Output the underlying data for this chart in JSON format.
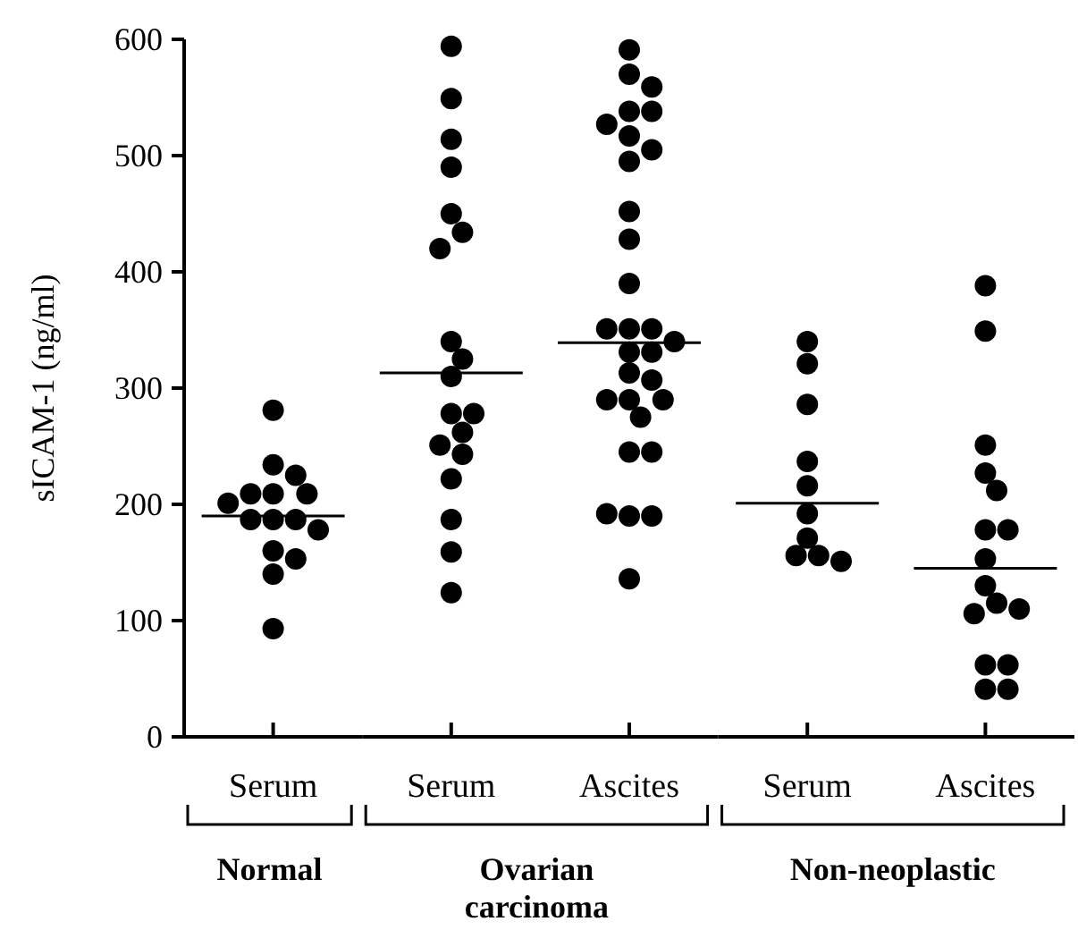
{
  "chart_data": [
    {
      "type": "scatter",
      "ylabel": "sICAM-1 (ng/ml)",
      "xlabel": "Normal",
      "categories": [
        "Serum"
      ],
      "ylim": [
        0,
        600
      ],
      "yticks": [
        0,
        100,
        200,
        300,
        400,
        500,
        600
      ],
      "marker": "circle",
      "grid": false,
      "series": [
        {
          "color": "#000000",
          "x": [
            "Serum",
            "Serum",
            "Serum",
            "Serum",
            "Serum",
            "Serum",
            "Serum",
            "Serum",
            "Serum",
            "Serum",
            "Serum",
            "Serum",
            "Serum",
            "Serum",
            "Serum"
          ],
          "values": [
            281,
            234,
            225,
            209,
            209,
            209,
            201,
            187,
            187,
            187,
            178,
            160,
            153,
            140,
            93
          ]
        },
        {
          "type": "box",
          "color": "#000000",
          "boxes": [
            {
              "low": 190,
              "q1": 190,
              "median": 190,
              "q3": 190,
              "high": 190
            }
          ]
        }
      ]
    },
    {
      "type": "scatter",
      "xlabel": "Ovarian carcinoma",
      "categories": [
        "Serum",
        "Ascites"
      ],
      "ylim": [
        0,
        600
      ],
      "tick_labels": "x",
      "marker": "circle",
      "grid": false,
      "series": [
        {
          "color": "#000000",
          "x": [
            "Serum",
            "Serum",
            "Serum",
            "Serum",
            "Serum",
            "Serum",
            "Serum",
            "Serum",
            "Serum",
            "Serum",
            "Serum",
            "Serum",
            "Serum",
            "Serum",
            "Serum",
            "Serum",
            "Serum",
            "Serum",
            "Serum",
            "Ascites",
            "Ascites",
            "Ascites",
            "Ascites",
            "Ascites",
            "Ascites",
            "Ascites",
            "Ascites",
            "Ascites",
            "Ascites",
            "Ascites",
            "Ascites",
            "Ascites",
            "Ascites",
            "Ascites",
            "Ascites",
            "Ascites",
            "Ascites",
            "Ascites",
            "Ascites",
            "Ascites",
            "Ascites",
            "Ascites",
            "Ascites",
            "Ascites",
            "Ascites",
            "Ascites",
            "Ascites",
            "Ascites",
            "Ascites"
          ],
          "values": [
            594,
            549,
            514,
            490,
            450,
            434,
            420,
            340,
            325,
            310,
            278,
            278,
            262,
            251,
            243,
            222,
            187,
            159,
            124,
            591,
            570,
            559,
            538,
            538,
            527,
            517,
            505,
            495,
            452,
            428,
            390,
            351,
            351,
            351,
            340,
            331,
            331,
            313,
            307,
            290,
            290,
            290,
            275,
            245,
            245,
            190,
            190,
            192,
            136
          ]
        },
        {
          "type": "box",
          "color": "#000000",
          "boxes": [
            {
              "low": 313,
              "q1": 313,
              "median": 313,
              "q3": 313,
              "high": 313
            },
            {
              "low": 339,
              "q1": 339,
              "median": 339,
              "q3": 339,
              "high": 339
            }
          ]
        }
      ]
    },
    {
      "type": "scatter",
      "xlabel": "Non-neoplastic",
      "categories": [
        "Serum",
        "Ascites"
      ],
      "ylim": [
        0,
        600
      ],
      "tick_labels": "x",
      "marker": "circle",
      "grid": false,
      "series": [
        {
          "color": "#000000",
          "x": [
            "Serum",
            "Serum",
            "Serum",
            "Serum",
            "Serum",
            "Serum",
            "Serum",
            "Serum",
            "Serum",
            "Serum",
            "Ascites",
            "Ascites",
            "Ascites",
            "Ascites",
            "Ascites",
            "Ascites",
            "Ascites",
            "Ascites",
            "Ascites",
            "Ascites",
            "Ascites",
            "Ascites",
            "Ascites",
            "Ascites",
            "Ascites",
            "Ascites"
          ],
          "values": [
            340,
            321,
            286,
            237,
            216,
            192,
            171,
            156,
            156,
            151,
            388,
            349,
            251,
            227,
            212,
            178,
            178,
            153,
            130,
            115,
            106,
            110,
            62,
            62,
            41,
            41
          ]
        },
        {
          "type": "box",
          "color": "#000000",
          "boxes": [
            {
              "low": 201,
              "q1": 201,
              "median": 201,
              "q3": 201,
              "high": 201
            },
            {
              "low": 145,
              "q1": 145,
              "median": 145,
              "q3": 145,
              "high": 145
            }
          ]
        }
      ]
    }
  ]
}
